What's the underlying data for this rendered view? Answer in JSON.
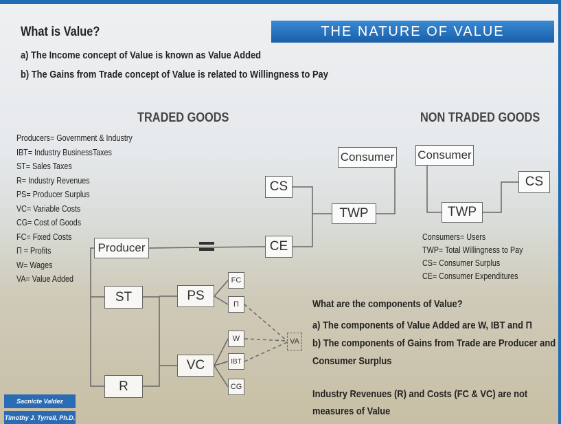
{
  "header": {
    "title": "What is Value?",
    "points": [
      "a) The Income concept of Value is known as Value Added",
      "b) The Gains from Trade concept of Value is related to Willingness to Pay"
    ],
    "banner": "THE NATURE OF VALUE"
  },
  "sections": [
    "TRADED GOODS",
    "NON TRADED GOODS"
  ],
  "traded_legend": [
    "Producers= Government & Industry",
    "IBT= Industry BusinessTaxes",
    "ST= Sales Taxes",
    "R= Industry Revenues",
    "PS= Producer Surplus",
    "VC= Variable Costs",
    "CG= Cost of Goods",
    "FC= Fixed Costs",
    "Π = Profits",
    "W= Wages",
    "VA= Value Added"
  ],
  "non_traded_legend": [
    "Consumers= Users",
    "TWP= Total Willingness to Pay",
    "CS= Consumer Surplus",
    "CE= Consumer Expenditures"
  ],
  "traded_nodes": [
    "Producer",
    "ST",
    "R",
    "PS",
    "VC",
    "FC",
    "Π",
    "W",
    "IBT",
    "CG",
    "VA",
    "CE",
    "CS",
    "TWP",
    "Consumer"
  ],
  "non_traded_nodes": [
    "Consumer",
    "TWP",
    "CS"
  ],
  "questions": {
    "title": "What are the components of Value?",
    "points": [
      "a) The components of Value Added are W, IBT and Π",
      "b) The components of Gains from Trade are Producer and Consumer Surplus"
    ],
    "note": "Industry Revenues (R) and Costs (FC & VC) are not measures of Value"
  },
  "authors": [
    "Sacnicte Valdez",
    "Timothy J. Tyrrell, Ph.D."
  ]
}
